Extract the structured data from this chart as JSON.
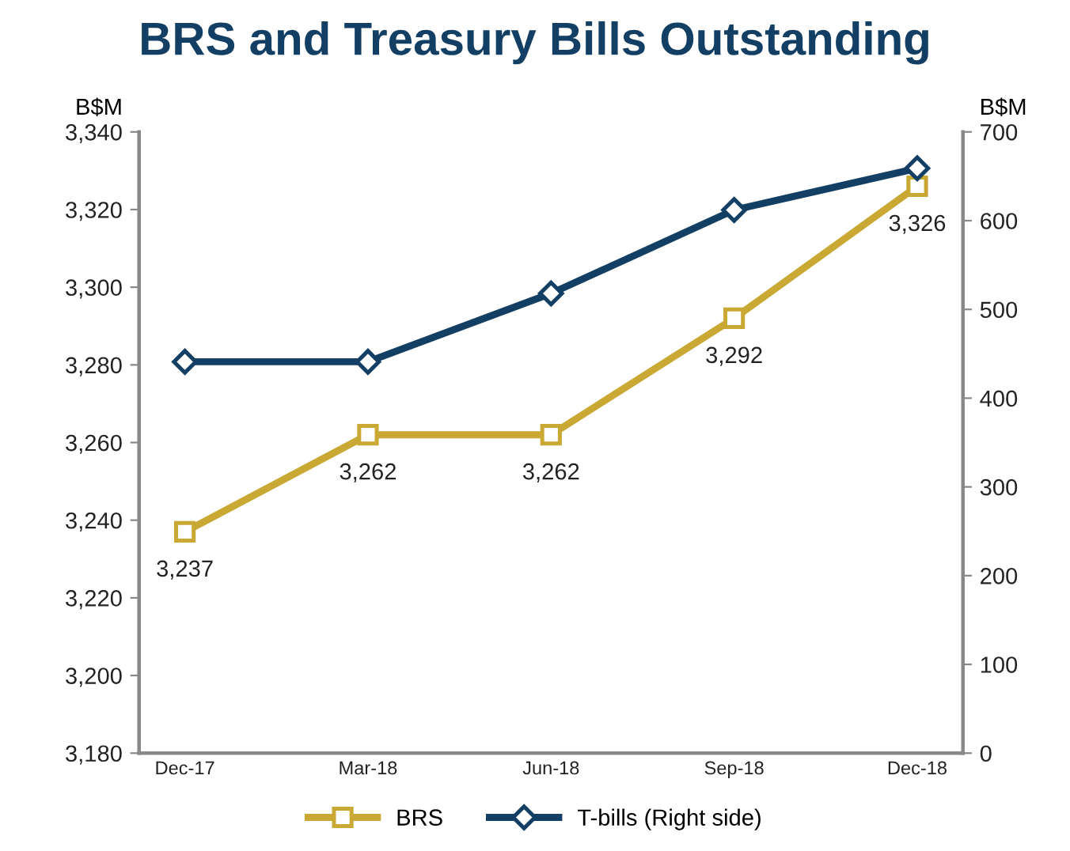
{
  "chart_data": {
    "type": "line",
    "title": "BRS and Treasury Bills Outstanding",
    "ylabel": "B$M",
    "y2label": "B$M",
    "categories": [
      "Dec-17",
      "Mar-18",
      "Jun-18",
      "Sep-18",
      "Dec-18"
    ],
    "series": [
      {
        "name": "BRS",
        "color": "#c9a833",
        "values": [
          3237,
          3262,
          3262,
          3292,
          3326
        ],
        "marker": "square",
        "value_labels": [
          "3,237",
          "3,262",
          "3,262",
          "3,292",
          "3,326"
        ]
      },
      {
        "name": "T-bills (Right side)",
        "color": "#123f63",
        "values": [
          441,
          441,
          518,
          612,
          659
        ],
        "axis": "y2",
        "marker": "diamond"
      }
    ],
    "ylim": [
      3180,
      3340
    ],
    "yticks": [
      {
        "value": 3180,
        "label": "3,180"
      },
      {
        "value": 3200,
        "label": "3,200"
      },
      {
        "value": 3220,
        "label": "3,220"
      },
      {
        "value": 3240,
        "label": "3,240"
      },
      {
        "value": 3260,
        "label": "3,260"
      },
      {
        "value": 3280,
        "label": "3,280"
      },
      {
        "value": 3300,
        "label": "3,300"
      },
      {
        "value": 3320,
        "label": "3,320"
      },
      {
        "value": 3340,
        "label": "3,340"
      }
    ],
    "y2lim": [
      0,
      700
    ],
    "y2ticks": [
      0,
      100,
      200,
      300,
      400,
      500,
      600,
      700
    ],
    "grid": false,
    "legend": "bottom",
    "line_style": "solid"
  }
}
